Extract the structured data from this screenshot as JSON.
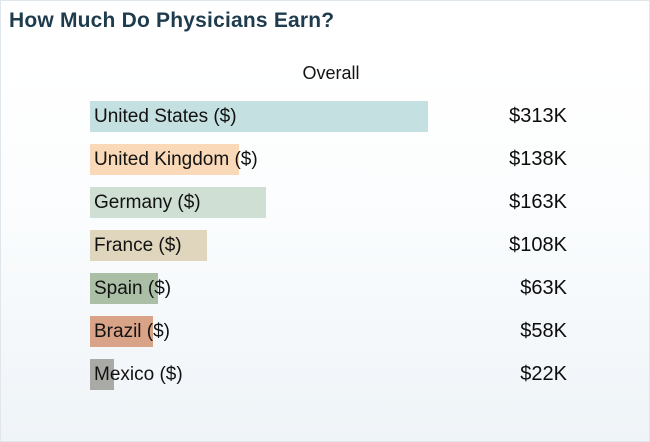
{
  "title": "How Much Do Physicians Earn?",
  "chart_data": {
    "type": "bar",
    "orientation": "horizontal",
    "column_header": "Overall",
    "categories": [
      "United States ($)",
      "United Kingdom ($)",
      "Germany ($)",
      "France ($)",
      "Spain ($)",
      "Brazil ($)",
      "Mexico ($)"
    ],
    "values": [
      313,
      138,
      163,
      108,
      63,
      58,
      22
    ],
    "value_labels": [
      "$313K",
      "$138K",
      "$163K",
      "$108K",
      "$63K",
      "$58K",
      "$22K"
    ],
    "xlim": [
      0,
      313
    ],
    "bar_colors": [
      "#c5e0e1",
      "#f9d9b8",
      "#cfdfd3",
      "#dfd6bd",
      "#aabfa5",
      "#d9a388",
      "#a9aaa6"
    ],
    "grid": "off",
    "legend": "none"
  },
  "colors": {
    "title": "#1e3c4d",
    "label_text": "#121212",
    "value_text": "#0c0c0c",
    "background_top": "#ffffff",
    "background_bottom": "#eff4f8",
    "border": "#dfe6ec"
  }
}
